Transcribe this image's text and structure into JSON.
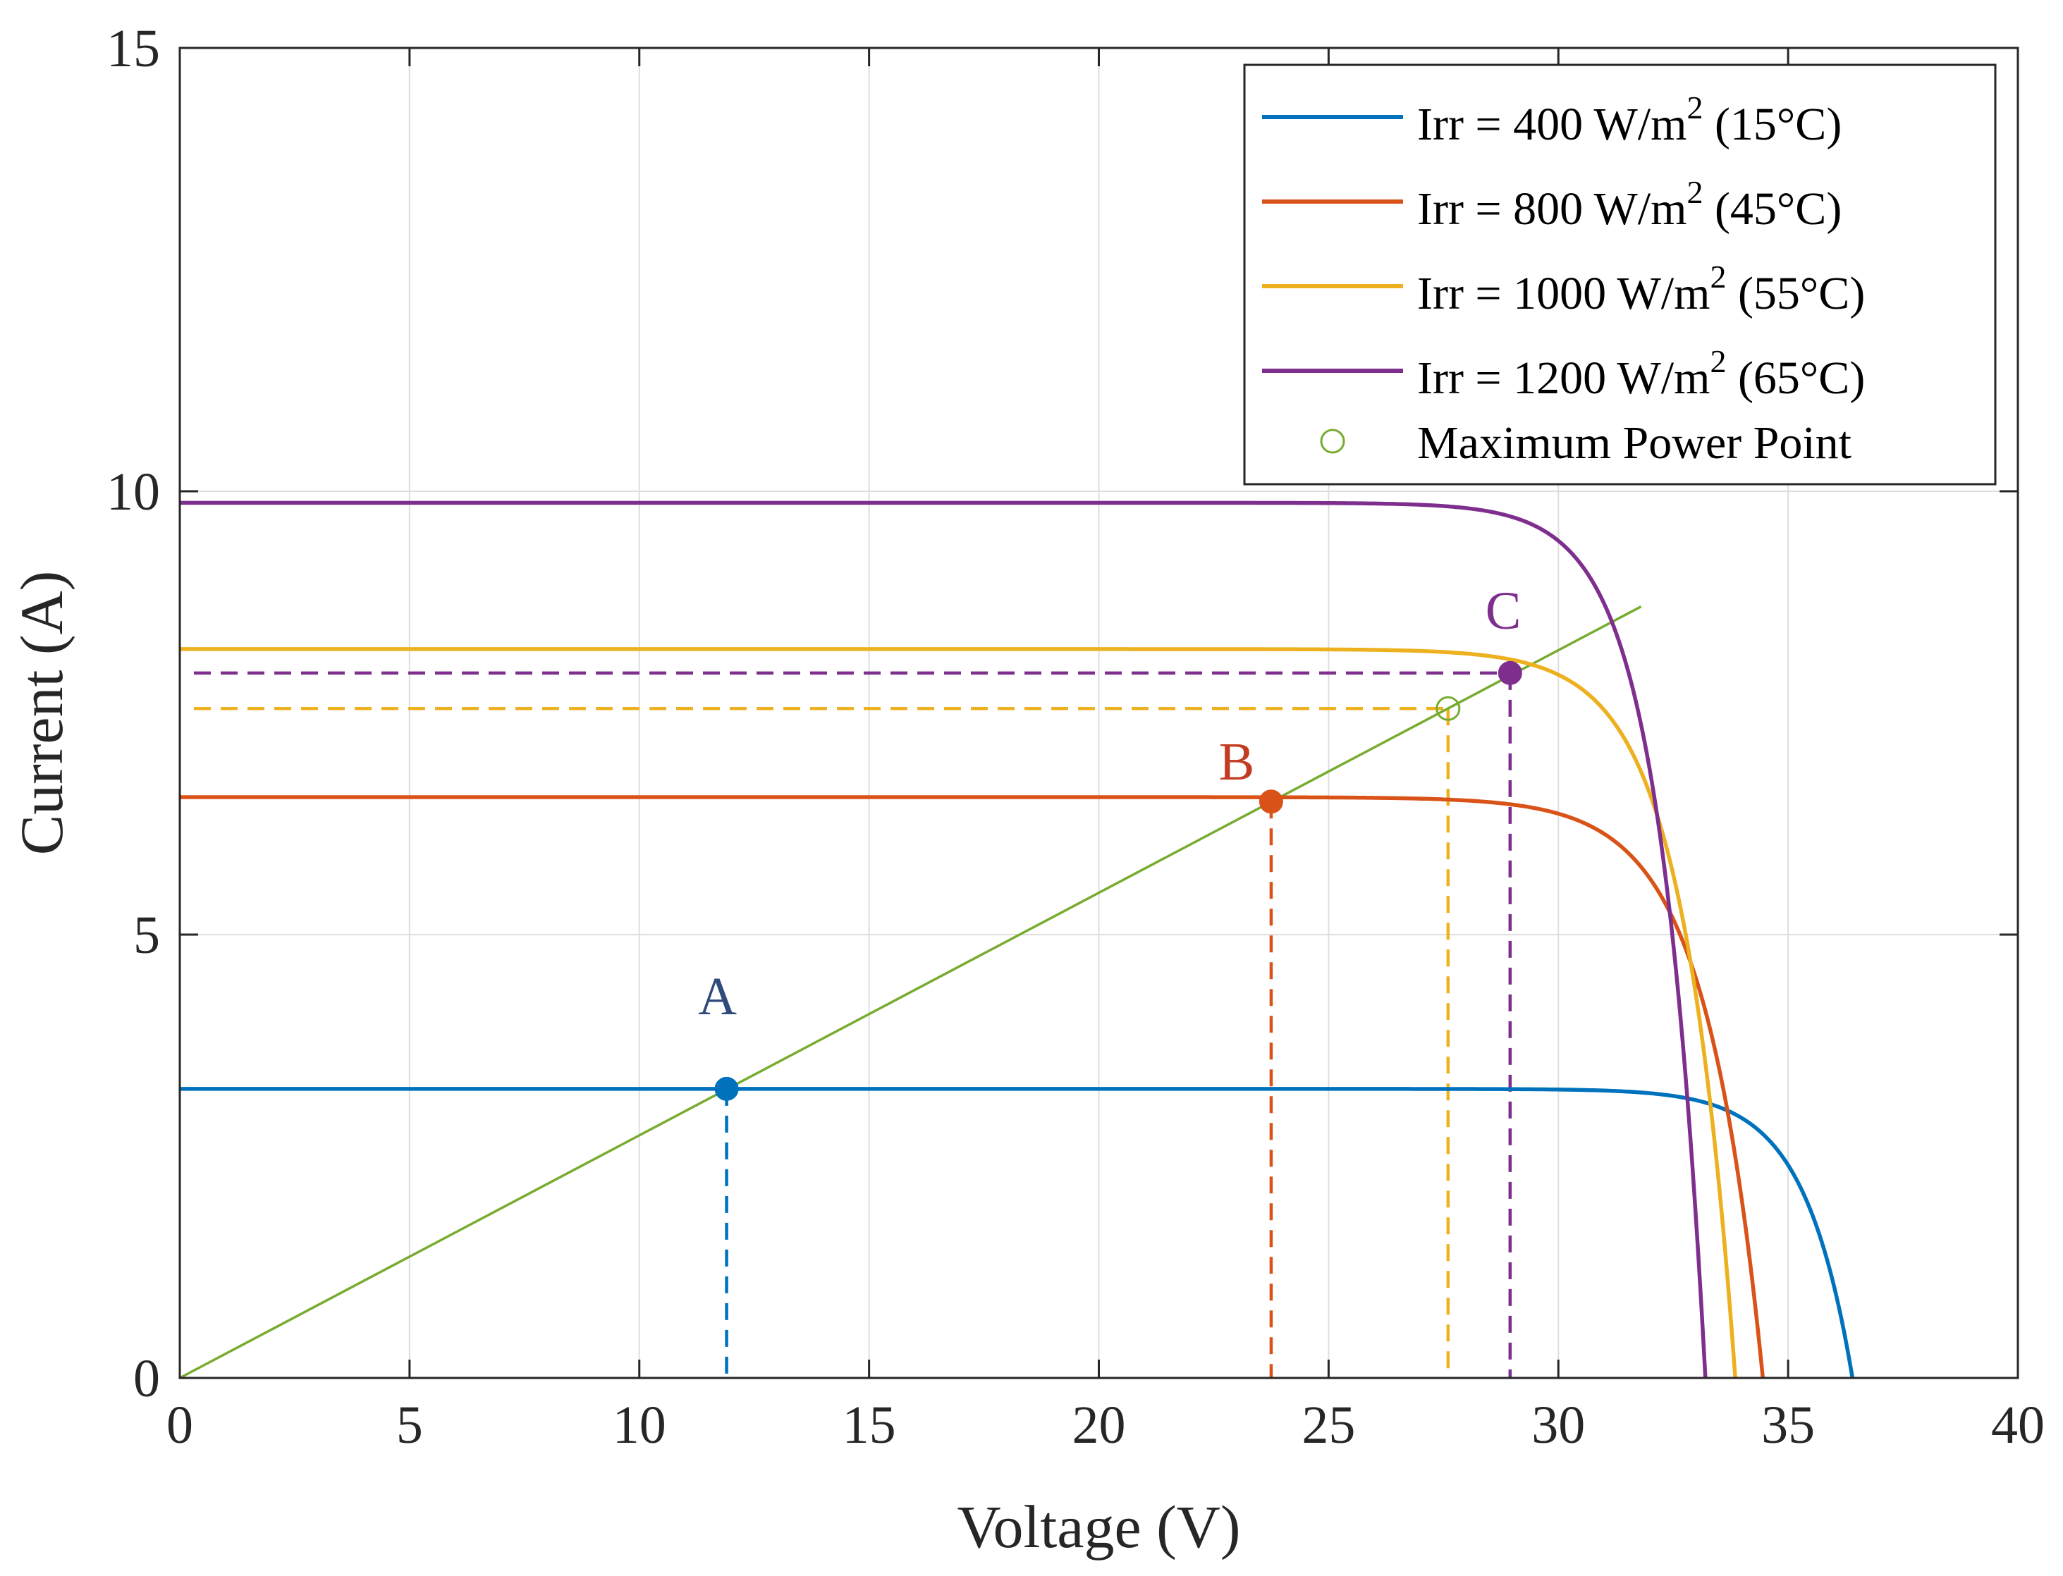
{
  "chart_data": {
    "type": "line",
    "xlabel": "Voltage (V)",
    "ylabel": "Current (A)",
    "xlim": [
      0,
      40
    ],
    "ylim": [
      0,
      15
    ],
    "xticks": [
      0,
      5,
      10,
      15,
      20,
      25,
      30,
      35,
      40
    ],
    "yticks": [
      0,
      5,
      10,
      15
    ],
    "grid": true,
    "legend_position": "top-right",
    "series": [
      {
        "name": "Irr = 400 W/m2 (15°C)",
        "label_main": "Irr = 400  W/m",
        "label_sup": "2",
        "label_tail": " (15°C)",
        "color": "#0072BD",
        "isc": 3.26,
        "voc": 36.4,
        "vt": 1.05
      },
      {
        "name": "Irr = 800 W/m2 (45°C)",
        "label_main": "Irr = 800  W/m",
        "label_sup": "2",
        "label_tail": " (45°C)",
        "color": "#D95319",
        "isc": 6.55,
        "voc": 34.45,
        "vt": 1.25
      },
      {
        "name": "Irr = 1000 W/m2 (55°C)",
        "label_main": "Irr = 1000  W/m",
        "label_sup": "2",
        "label_tail": " (55°C)",
        "color": "#EDB120",
        "isc": 8.22,
        "voc": 33.85,
        "vt": 1.15
      },
      {
        "name": "Irr = 1200 W/m2 (65°C)",
        "label_main": "Irr = 1200  W/m",
        "label_sup": "2",
        "label_tail": " (65°C)",
        "color": "#7E2F8E",
        "isc": 9.87,
        "voc": 33.2,
        "vt": 1.02
      }
    ],
    "load_line": {
      "color": "#77AC30",
      "x": [
        0,
        31.8
      ],
      "y": [
        0,
        8.7
      ]
    },
    "mpp_legend": {
      "label": "Maximum Power Point",
      "color": "#77AC30"
    },
    "points": [
      {
        "label": "A",
        "x": 11.9,
        "y": 3.26,
        "color": "#0072BD",
        "label_color": "#2F4B7C",
        "label_x": 11.7,
        "label_y": 4.1,
        "dashed_vertical": true,
        "dashed_horizontal": false,
        "marker": "filled"
      },
      {
        "label": "B",
        "x": 23.75,
        "y": 6.5,
        "color": "#D95319",
        "label_color": "#C23B22",
        "label_x": 23.0,
        "label_y": 6.75,
        "dashed_vertical": true,
        "dashed_horizontal": false,
        "marker": "filled"
      },
      {
        "label": "",
        "x": 27.6,
        "y": 7.55,
        "color": "#EDB120",
        "dashed_vertical": true,
        "dashed_horizontal": true,
        "marker": "open-green"
      },
      {
        "label": "C",
        "x": 28.95,
        "y": 7.95,
        "color": "#7E2F8E",
        "label_color": "#7E2F8E",
        "label_x": 28.8,
        "label_y": 8.45,
        "dashed_vertical": true,
        "dashed_horizontal": true,
        "marker": "filled"
      }
    ],
    "tick_labels_x": [
      "0",
      "5",
      "10",
      "15",
      "20",
      "25",
      "30",
      "35",
      "40"
    ],
    "tick_labels_y": [
      "0",
      "5",
      "10",
      "15"
    ]
  }
}
